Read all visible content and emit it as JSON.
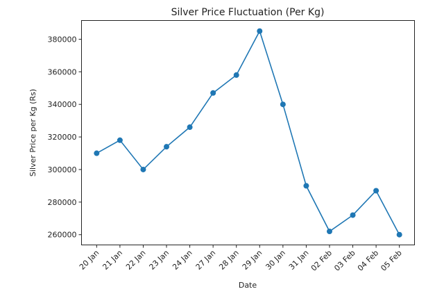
{
  "chart_data": {
    "type": "line",
    "title": "Silver Price Fluctuation (Per Kg)",
    "xlabel": "Date",
    "ylabel": "Silver Price per Kg (Rs)",
    "categories": [
      "20 Jan",
      "21 Jan",
      "22 Jan",
      "23 Jan",
      "24 Jan",
      "27 Jan",
      "28 Jan",
      "29 Jan",
      "30 Jan",
      "31 Jan",
      "02 Feb",
      "03 Feb",
      "04 Feb",
      "05 Feb"
    ],
    "values": [
      310000,
      318000,
      300000,
      314000,
      326000,
      347000,
      358000,
      385000,
      340000,
      290000,
      262000,
      272000,
      287000,
      260000
    ],
    "yticks": [
      260000,
      280000,
      300000,
      320000,
      340000,
      360000,
      380000
    ],
    "ylim": [
      253700,
      391500
    ],
    "grid": false,
    "marker": "circle",
    "color": "#1f77b4"
  }
}
